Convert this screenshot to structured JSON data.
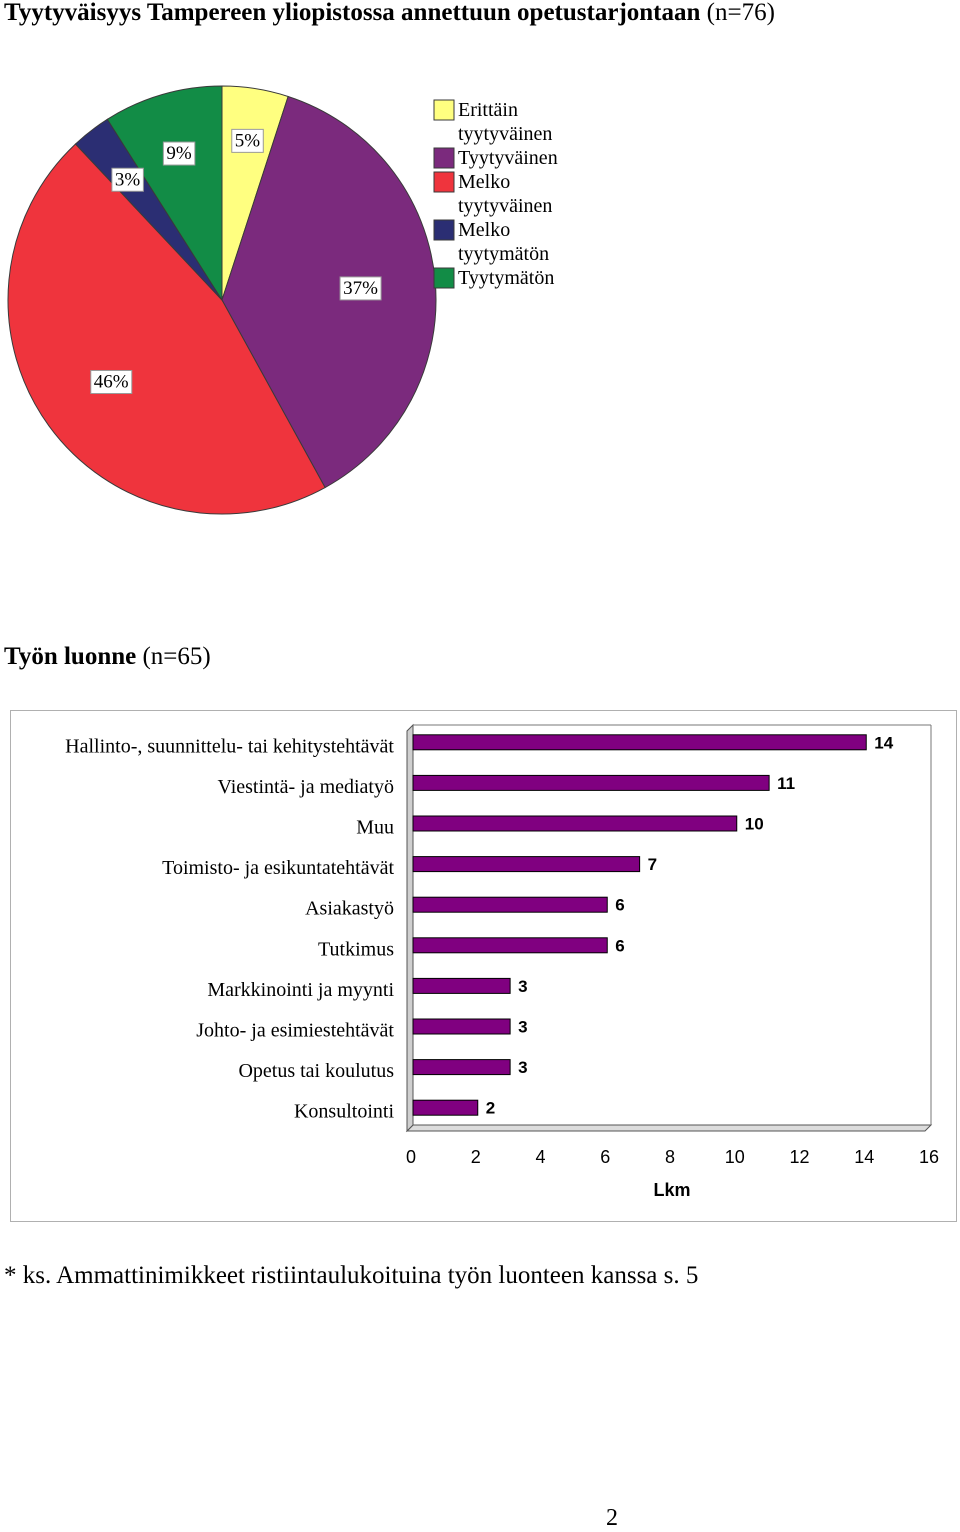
{
  "pie_section": {
    "title_bold": "Tyytyväisyys Tampereen yliopistossa annettuun opetustarjontaan",
    "title_rest": " (n=76)"
  },
  "bar_section": {
    "title_bold": "Työn luonne",
    "title_rest": " (n=65)"
  },
  "chart_data": [
    {
      "type": "pie",
      "title": "Tyytyväisyys Tampereen yliopistossa annettuun opetustarjontaan (n=76)",
      "slices": [
        {
          "legend": [
            "Erittäin",
            "tyytyväinen"
          ],
          "value": 5,
          "label": "5%",
          "color": "#ffff80"
        },
        {
          "legend": [
            "Tyytyväinen"
          ],
          "value": 37,
          "label": "37%",
          "color": "#7b2a7d"
        },
        {
          "legend": [
            "Melko",
            "tyytyväinen"
          ],
          "value": 46,
          "label": "46%",
          "color": "#ef343d"
        },
        {
          "legend": [
            "Melko",
            "tyytymätön"
          ],
          "value": 3,
          "label": "3%",
          "color": "#2b2e73"
        },
        {
          "legend": [
            "Tyytymätön"
          ],
          "value": 9,
          "label": "9%",
          "color": "#128c46"
        }
      ],
      "legend_position": "right",
      "start_angle_deg": 0,
      "direction": "clockwise"
    },
    {
      "type": "bar",
      "orientation": "horizontal",
      "title": "Työn luonne (n=65)",
      "categories": [
        "Hallinto-, suunnittelu- tai kehitystehtävät",
        "Viestintä- ja mediatyö",
        "Muu",
        "Toimisto- ja esikuntatehtävät",
        "Asiakastyö",
        "Tutkimus",
        "Markkinointi ja myynti",
        "Johto- ja esimiestehtävät",
        "Opetus tai koulutus",
        "Konsultointi"
      ],
      "values": [
        14,
        11,
        10,
        7,
        6,
        6,
        3,
        3,
        3,
        2
      ],
      "xlabel": "Lkm",
      "xlim": [
        0,
        16
      ],
      "xticks": [
        "0",
        "2",
        "4",
        "6",
        "8",
        "10",
        "12",
        "14",
        "16"
      ],
      "bar_color": "#800080",
      "legend": "none"
    }
  ],
  "footnote": "* ks. Ammattinimikkeet ristiintaulukoituina työn luonteen kanssa s. 5",
  "page_number": "2"
}
